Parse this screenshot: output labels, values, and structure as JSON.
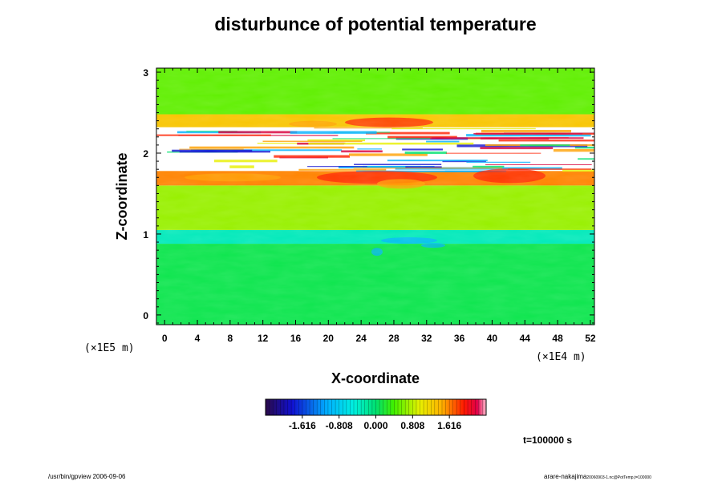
{
  "chart_data": {
    "type": "heatmap",
    "title": "disturbunce of potential temperature",
    "xlabel": "X-coordinate",
    "ylabel": "Z-coordinate",
    "x_unit": "(×1E4 m)",
    "y_unit": "(×1E5 m)",
    "xlim": [
      -1,
      52.5
    ],
    "ylim": [
      -0.12,
      3.05
    ],
    "x_ticks": [
      0,
      4,
      8,
      12,
      16,
      20,
      24,
      28,
      32,
      36,
      40,
      44,
      48,
      52
    ],
    "y_ticks": [
      0,
      1,
      2,
      3
    ],
    "x_tick_labels": [
      "0",
      "4",
      "8",
      "12",
      "16",
      "20",
      "24",
      "28",
      "32",
      "36",
      "40",
      "44",
      "48",
      "52"
    ],
    "y_tick_labels": [
      "0",
      "1",
      "2",
      "3"
    ],
    "colorbar": {
      "min": -2.424,
      "max": 2.424,
      "ticks": [
        -1.616,
        -0.808,
        0.0,
        0.808,
        1.616
      ],
      "tick_labels": [
        "-1.616",
        "-0.808",
        "0.000",
        "0.808",
        "1.616"
      ],
      "colors": [
        "#3a0a5a",
        "#1010c8",
        "#00a0ff",
        "#00f0f0",
        "#00e07a",
        "#20ee00",
        "#9ef000",
        "#f0f000",
        "#ffa000",
        "#ff2000",
        "#d8003c",
        "#ffb0c0"
      ]
    },
    "bands": [
      {
        "z_from": -0.12,
        "z_to": 0.88,
        "value": -0.5,
        "label": "lower layer (cyan-green)"
      },
      {
        "z_from": 0.88,
        "z_to": 1.05,
        "value": -0.9,
        "label": "cool patches"
      },
      {
        "z_from": 1.05,
        "z_to": 1.6,
        "value": 0.2,
        "label": "green"
      },
      {
        "z_from": 1.6,
        "z_to": 1.78,
        "value": 1.2,
        "label": "warm (yellow-red)"
      },
      {
        "z_from": 1.78,
        "z_to": 2.32,
        "value": null,
        "label": "out of range / mixed layer"
      },
      {
        "z_from": 2.32,
        "z_to": 2.48,
        "value": 0.9,
        "label": "warm layer"
      },
      {
        "z_from": 2.48,
        "z_to": 3.05,
        "value": 0.0,
        "label": "upper layer (green)"
      }
    ],
    "time_label": "t=100000 s"
  },
  "footer": {
    "left": "/usr/bin/gpview 2006-09-06",
    "right_main": "arare-nakajima",
    "right_small": "20060903-1.nc@PotTemp,t=100000"
  }
}
